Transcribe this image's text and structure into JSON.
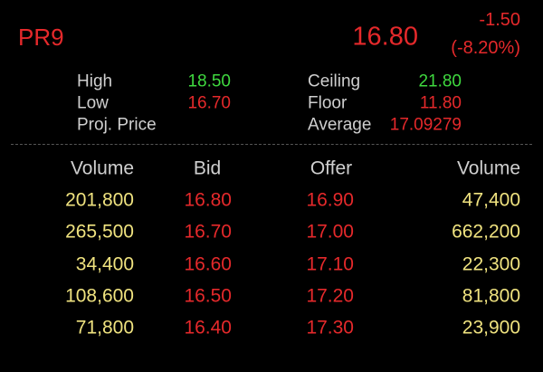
{
  "quote": {
    "symbol": "PR9",
    "price": "16.80",
    "change": "-1.50",
    "change_percent": "(-8.20%)"
  },
  "stats": {
    "left": [
      {
        "label": "High",
        "value": "18.50"
      },
      {
        "label": "Low",
        "value": "16.70"
      },
      {
        "label": "Proj. Price"
      }
    ],
    "right": [
      {
        "label": "Ceiling",
        "value": "21.80"
      },
      {
        "label": "Floor",
        "value": "11.80"
      },
      {
        "label": "Average",
        "value": "17.09279"
      }
    ]
  },
  "order_book": {
    "headers": [
      "Volume",
      "Bid",
      "Offer",
      "Volume"
    ],
    "rows": [
      [
        "201,800",
        "16.80",
        "16.90",
        "47,400"
      ],
      [
        "265,500",
        "16.70",
        "17.00",
        "662,200"
      ],
      [
        "34,400",
        "16.60",
        "17.10",
        "22,300"
      ],
      [
        "108,600",
        "16.50",
        "17.20",
        "81,800"
      ],
      [
        "71,800",
        "16.40",
        "17.30",
        "23,900"
      ]
    ]
  }
}
